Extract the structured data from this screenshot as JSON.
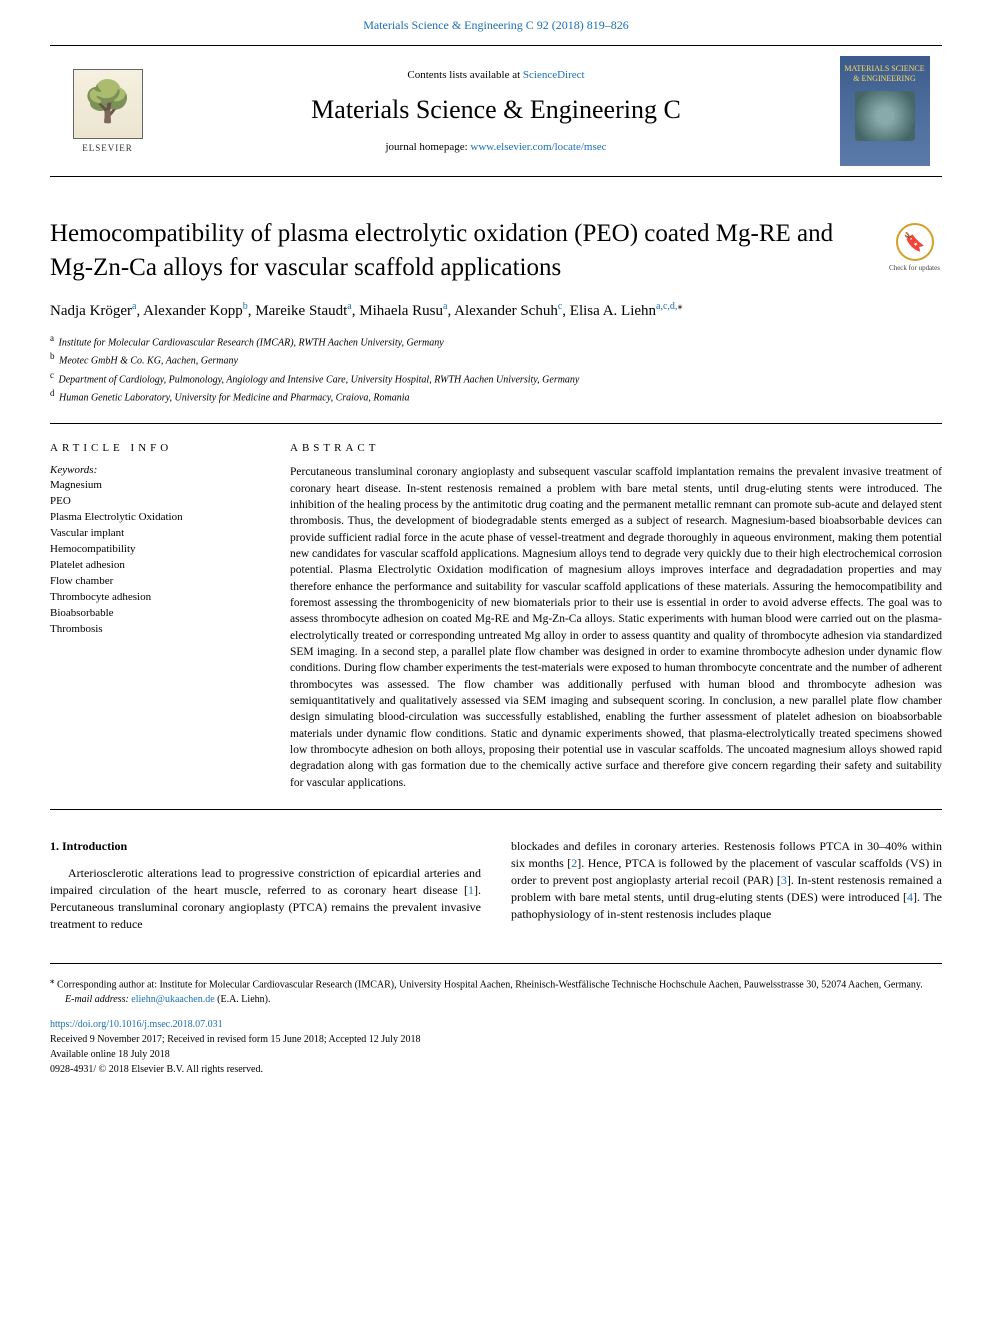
{
  "top_link_prefix": "",
  "top_link_text": "Materials Science & Engineering C 92 (2018) 819–826",
  "header": {
    "contents_prefix": "Contents lists available at ",
    "contents_link": "ScienceDirect",
    "journal_title": "Materials Science & Engineering C",
    "homepage_prefix": "journal homepage: ",
    "homepage_link": "www.elsevier.com/locate/msec",
    "publisher_name": "ELSEVIER",
    "cover_title": "MATERIALS SCIENCE & ENGINEERING"
  },
  "check_updates": {
    "glyph": "🔖",
    "text": "Check for updates"
  },
  "article": {
    "title": "Hemocompatibility of plasma electrolytic oxidation (PEO) coated Mg-RE and Mg-Zn-Ca alloys for vascular scaffold applications",
    "authors_html": "Nadja Kröger<sup>a</sup>, Alexander Kopp<sup>b</sup>, Mareike Staudt<sup>a</sup>, Mihaela Rusu<sup>a</sup>, Alexander Schuh<sup>c</sup>, Elisa A. Liehn<sup>a,c,d,</sup><sup class=\"star\">⁎</sup>",
    "affiliations": [
      {
        "sup": "a",
        "text": "Institute for Molecular Cardiovascular Research (IMCAR), RWTH Aachen University, Germany"
      },
      {
        "sup": "b",
        "text": "Meotec GmbH & Co. KG, Aachen, Germany"
      },
      {
        "sup": "c",
        "text": "Department of Cardiology, Pulmonology, Angiology and Intensive Care, University Hospital, RWTH Aachen University, Germany"
      },
      {
        "sup": "d",
        "text": "Human Genetic Laboratory, University for Medicine and Pharmacy, Craiova, Romania"
      }
    ]
  },
  "article_info": {
    "heading": "ARTICLE INFO",
    "keywords_label": "Keywords:",
    "keywords": [
      "Magnesium",
      "PEO",
      "Plasma Electrolytic Oxidation",
      "Vascular implant",
      "Hemocompatibility",
      "Platelet adhesion",
      "Flow chamber",
      "Thrombocyte adhesion",
      "Bioabsorbable",
      "Thrombosis"
    ]
  },
  "abstract": {
    "heading": "ABSTRACT",
    "text": "Percutaneous transluminal coronary angioplasty and subsequent vascular scaffold implantation remains the prevalent invasive treatment of coronary heart disease. In-stent restenosis remained a problem with bare metal stents, until drug-eluting stents were introduced. The inhibition of the healing process by the antimitotic drug coating and the permanent metallic remnant can promote sub-acute and delayed stent thrombosis. Thus, the development of biodegradable stents emerged as a subject of research. Magnesium-based bioabsorbable devices can provide sufficient radial force in the acute phase of vessel-treatment and degrade thoroughly in aqueous environment, making them potential new candidates for vascular scaffold applications. Magnesium alloys tend to degrade very quickly due to their high electrochemical corrosion potential. Plasma Electrolytic Oxidation modification of magnesium alloys improves interface and degradadation properties and may therefore enhance the performance and suitability for vascular scaffold applications of these materials. Assuring the hemocompatibility and foremost assessing the thrombogenicity of new biomaterials prior to their use is essential in order to avoid adverse effects. The goal was to assess thrombocyte adhesion on coated Mg-RE and Mg-Zn-Ca alloys. Static experiments with human blood were carried out on the plasma-electrolytically treated or corresponding untreated Mg alloy in order to assess quantity and quality of thrombocyte adhesion via standardized SEM imaging. In a second step, a parallel plate flow chamber was designed in order to examine thrombocyte adhesion under dynamic flow conditions. During flow chamber experiments the test-materials were exposed to human thrombocyte concentrate and the number of adherent thrombocytes was assessed. The flow chamber was additionally perfused with human blood and thrombocyte adhesion was semiquantitatively and qualitatively assessed via SEM imaging and subsequent scoring. In conclusion, a new parallel plate flow chamber design simulating blood-circulation was successfully established, enabling the further assessment of platelet adhesion on bioabsorbable materials under dynamic flow conditions. Static and dynamic experiments showed, that plasma-electrolytically treated specimens showed low thrombocyte adhesion on both alloys, proposing their potential use in vascular scaffolds. The uncoated magnesium alloys showed rapid degradation along with gas formation due to the chemically active surface and therefore give concern regarding their safety and suitability for vascular applications."
  },
  "introduction": {
    "heading": "1. Introduction",
    "p1": "Arteriosclerotic alterations lead to progressive constriction of epicardial arteries and impaired circulation of the heart muscle, referred to as coronary heart disease [1]. Percutaneous transluminal coronary angioplasty (PTCA) remains the prevalent invasive treatment to reduce",
    "p2": "blockades and defiles in coronary arteries. Restenosis follows PTCA in 30–40% within six months [2]. Hence, PTCA is followed by the placement of vascular scaffolds (VS) in order to prevent post angioplasty arterial recoil (PAR) [3]. In-stent restenosis remained a problem with bare metal stents, until drug-eluting stents (DES) were introduced [4]. The pathophysiology of in-stent restenosis includes plaque"
  },
  "footer": {
    "corr": "⁎ Corresponding author at: Institute for Molecular Cardiovascular Research (IMCAR), University Hospital Aachen, Rheinisch-Westfälische Technische Hochschule Aachen, Pauwelsstrasse 30, 52074 Aachen, Germany.",
    "email_label": "E-mail address: ",
    "email": "eliehn@ukaachen.de",
    "email_suffix": " (E.A. Liehn).",
    "doi": "https://doi.org/10.1016/j.msec.2018.07.031",
    "received": "Received 9 November 2017; Received in revised form 15 June 2018; Accepted 12 July 2018",
    "available": "Available online 18 July 2018",
    "copyright": "0928-4931/ © 2018 Elsevier B.V. All rights reserved."
  },
  "colors": {
    "link": "#1a6fb5",
    "text": "#000000",
    "cover_bg": "#4a6a9a",
    "cover_accent": "#ffd966"
  }
}
